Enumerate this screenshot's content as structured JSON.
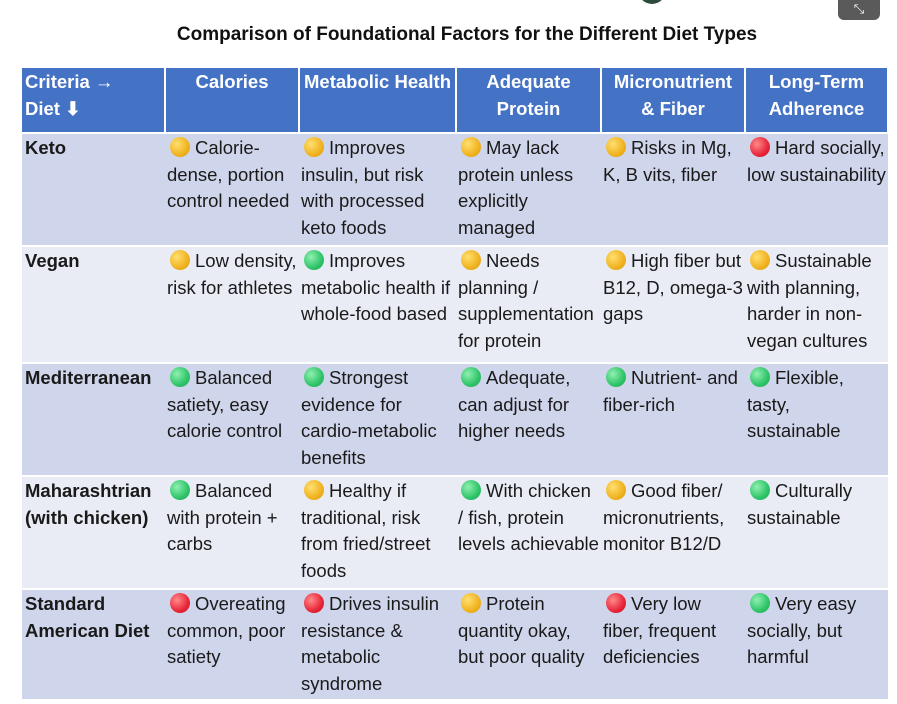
{
  "title": "Comparison of Foundational Factors for the Different Diet Types",
  "ui": {
    "expand_glyph": "⤡"
  },
  "status_colors": {
    "green": "#2fc469",
    "yellow": "#f0b21f",
    "red": "#e8263a"
  },
  "header": {
    "criteria_line1": "Criteria →",
    "criteria_line2": "Diet ⬇",
    "columns": [
      "Calories",
      "Metabolic Health",
      "Adequate Protein",
      "Micronutrient & Fiber",
      "Long-Term Adherence"
    ]
  },
  "rows": [
    {
      "diet": "Keto",
      "cells": [
        {
          "status": "yellow",
          "text": "Calorie-dense, portion control needed"
        },
        {
          "status": "yellow",
          "text": "Improves insulin, but risk with processed keto foods"
        },
        {
          "status": "yellow",
          "text": "May lack protein unless explicitly managed"
        },
        {
          "status": "yellow",
          "text": "Risks in Mg, K, B vits, fiber"
        },
        {
          "status": "red",
          "text": "Hard socially, low sustainability"
        }
      ]
    },
    {
      "diet": "Vegan",
      "cells": [
        {
          "status": "yellow",
          "text": "Low density, risk for athletes"
        },
        {
          "status": "green",
          "text": "Improves metabolic health if whole-food based"
        },
        {
          "status": "yellow",
          "text": "Needs planning / supplementation for protein"
        },
        {
          "status": "yellow",
          "text": "High fiber but B12, D, omega-3 gaps"
        },
        {
          "status": "yellow",
          "text": "Sustainable with planning, harder in non-vegan cultures"
        }
      ]
    },
    {
      "diet": "Mediterranean",
      "cells": [
        {
          "status": "green",
          "text": "Balanced satiety, easy calorie control"
        },
        {
          "status": "green",
          "text": "Strongest evidence for cardio-metabolic benefits"
        },
        {
          "status": "green",
          "text": "Adequate, can adjust for higher needs"
        },
        {
          "status": "green",
          "text": "Nutrient- and fiber-rich"
        },
        {
          "status": "green",
          "text": "Flexible, tasty, sustainable"
        }
      ]
    },
    {
      "diet": "Maharashtrian (with chicken)",
      "cells": [
        {
          "status": "green",
          "text": "Balanced with protein + carbs"
        },
        {
          "status": "yellow",
          "text": "Healthy if traditional, risk from fried/street foods"
        },
        {
          "status": "green",
          "text": "With chicken / fish, protein levels achievable"
        },
        {
          "status": "yellow",
          "text": "Good fiber/ micronutrients, monitor B12/D"
        },
        {
          "status": "green",
          "text": "Culturally sustainable"
        }
      ]
    },
    {
      "diet": "Standard American Diet",
      "cells": [
        {
          "status": "red",
          "text": "Overeating common, poor satiety"
        },
        {
          "status": "red",
          "text": "Drives insulin resistance & metabolic syndrome"
        },
        {
          "status": "yellow",
          "text": "Protein quantity okay, but poor quality"
        },
        {
          "status": "red",
          "text": "Very low fiber, frequent deficiencies"
        },
        {
          "status": "green",
          "text": "Very easy socially, but harmful"
        }
      ]
    }
  ]
}
